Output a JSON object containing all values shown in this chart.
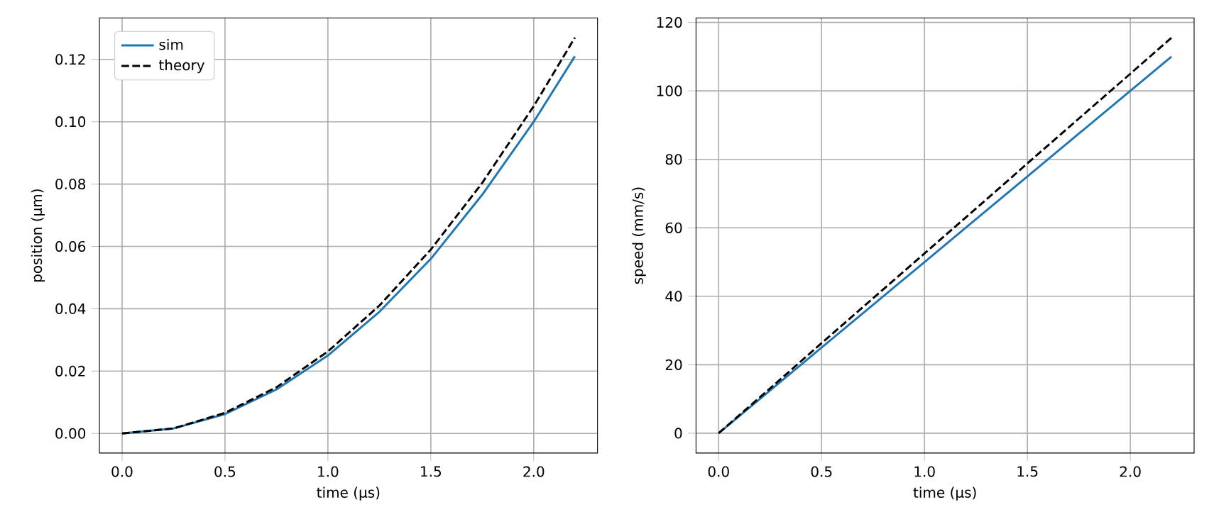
{
  "chart_data": [
    {
      "type": "line",
      "xlabel": "time (µs)",
      "ylabel": "position (µm)",
      "x": [
        0,
        0.25,
        0.5,
        0.75,
        1.0,
        1.25,
        1.5,
        1.75,
        2.0,
        2.2
      ],
      "series": [
        {
          "name": "sim",
          "color": "#1f77b4",
          "line_style": "solid",
          "values": [
            0,
            0.0016,
            0.0062,
            0.0141,
            0.025,
            0.039,
            0.056,
            0.0766,
            0.1,
            0.121
          ]
        },
        {
          "name": "theory",
          "color": "#000000",
          "line_style": "dashed",
          "values": [
            0,
            0.0016,
            0.0066,
            0.0148,
            0.0263,
            0.041,
            0.059,
            0.0804,
            0.105,
            0.127
          ]
        }
      ],
      "xlim": [
        -0.11,
        2.31
      ],
      "ylim": [
        -0.0063,
        0.1333
      ],
      "xticks": [
        {
          "value": 0,
          "label": "0.0"
        },
        {
          "value": 0.5,
          "label": "0.5"
        },
        {
          "value": 1.0,
          "label": "1.0"
        },
        {
          "value": 1.5,
          "label": "1.5"
        },
        {
          "value": 2.0,
          "label": "2.0"
        }
      ],
      "yticks": [
        {
          "value": 0,
          "label": "0.00"
        },
        {
          "value": 0.02,
          "label": "0.02"
        },
        {
          "value": 0.04,
          "label": "0.04"
        },
        {
          "value": 0.06,
          "label": "0.06"
        },
        {
          "value": 0.08,
          "label": "0.08"
        },
        {
          "value": 0.1,
          "label": "0.10"
        },
        {
          "value": 0.12,
          "label": "0.12"
        }
      ],
      "grid": true,
      "legend": "top left"
    },
    {
      "type": "line",
      "xlabel": "time (µs)",
      "ylabel": "speed (mm/s)",
      "x": [
        0,
        0.25,
        0.5,
        0.75,
        1.0,
        1.25,
        1.5,
        1.75,
        2.0,
        2.2
      ],
      "series": [
        {
          "color": "#1f77b4",
          "line_style": "solid",
          "values": [
            0,
            12.5,
            25,
            37.5,
            50,
            62.5,
            75,
            87.5,
            100,
            110
          ]
        },
        {
          "color": "#000000",
          "line_style": "dashed",
          "values": [
            0,
            13.1,
            26.3,
            39.4,
            52.5,
            65.6,
            78.8,
            91.9,
            105,
            115.5
          ]
        }
      ],
      "xlim": [
        -0.11,
        2.31
      ],
      "ylim": [
        -5.8,
        121.3
      ],
      "xticks": [
        {
          "value": 0,
          "label": "0.0"
        },
        {
          "value": 0.5,
          "label": "0.5"
        },
        {
          "value": 1.0,
          "label": "1.0"
        },
        {
          "value": 1.5,
          "label": "1.5"
        },
        {
          "value": 2.0,
          "label": "2.0"
        }
      ],
      "yticks": [
        0,
        20,
        40,
        60,
        80,
        100,
        120
      ],
      "grid": true
    }
  ]
}
